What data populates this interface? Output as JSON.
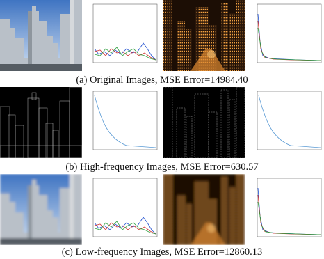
{
  "figure": {
    "panels": [
      {
        "caption": "(a) Original Images, MSE Error=14984.40"
      },
      {
        "caption": "(b) High-frequency Images, MSE Error=630.57"
      },
      {
        "caption": "(c) Low-frequency Images, MSE Error=12860.13"
      }
    ]
  }
}
